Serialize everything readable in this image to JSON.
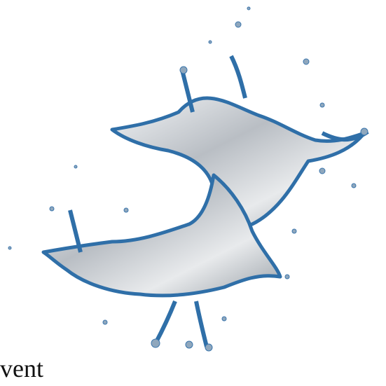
{
  "caption": {
    "text": "vent"
  }
}
